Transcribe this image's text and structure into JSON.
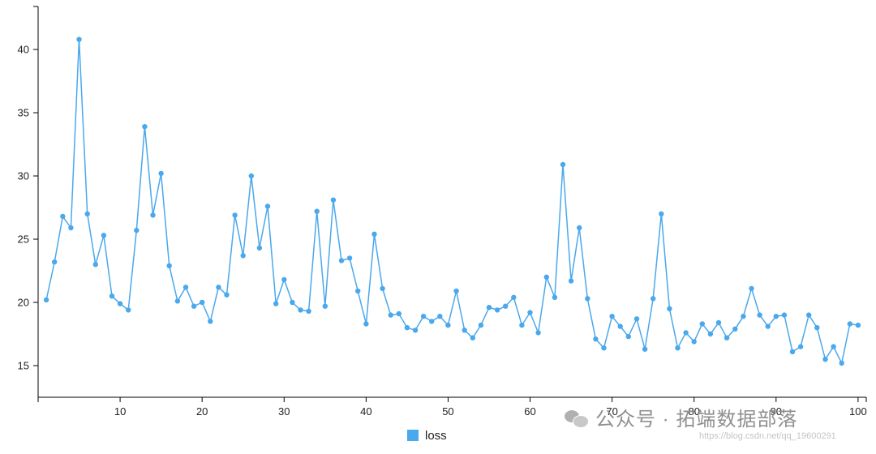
{
  "chart_data": {
    "type": "line",
    "x": [
      1,
      2,
      3,
      4,
      5,
      6,
      7,
      8,
      9,
      10,
      11,
      12,
      13,
      14,
      15,
      16,
      17,
      18,
      19,
      20,
      21,
      22,
      23,
      24,
      25,
      26,
      27,
      28,
      29,
      30,
      31,
      32,
      33,
      34,
      35,
      36,
      37,
      38,
      39,
      40,
      41,
      42,
      43,
      44,
      45,
      46,
      47,
      48,
      49,
      50,
      51,
      52,
      53,
      54,
      55,
      56,
      57,
      58,
      59,
      60,
      61,
      62,
      63,
      64,
      65,
      66,
      67,
      68,
      69,
      70,
      71,
      72,
      73,
      74,
      75,
      76,
      77,
      78,
      79,
      80,
      81,
      82,
      83,
      84,
      85,
      86,
      87,
      88,
      89,
      90,
      91,
      92,
      93,
      94,
      95,
      96,
      97,
      98,
      99,
      100
    ],
    "series": [
      {
        "name": "loss",
        "values": [
          20.2,
          23.2,
          26.8,
          25.9,
          40.8,
          27.0,
          23.0,
          25.3,
          20.5,
          19.9,
          19.4,
          25.7,
          33.9,
          26.9,
          30.2,
          22.9,
          20.1,
          21.2,
          19.7,
          20.0,
          18.5,
          21.2,
          20.6,
          26.9,
          23.7,
          30.0,
          24.3,
          27.6,
          19.9,
          21.8,
          20.0,
          19.4,
          19.3,
          27.2,
          19.7,
          28.1,
          23.3,
          23.5,
          20.9,
          18.3,
          25.4,
          21.1,
          19.0,
          19.1,
          18.0,
          17.8,
          18.9,
          18.5,
          18.9,
          18.2,
          20.9,
          17.8,
          17.2,
          18.2,
          19.6,
          19.4,
          19.7,
          20.4,
          18.2,
          19.2,
          17.6,
          22.0,
          20.4,
          30.9,
          21.7,
          25.9,
          20.3,
          17.1,
          16.4,
          18.9,
          18.1,
          17.3,
          18.7,
          16.3,
          20.3,
          27.0,
          19.5,
          16.4,
          17.6,
          16.9,
          18.3,
          17.5,
          18.4,
          17.2,
          17.9,
          18.9,
          21.1,
          19.0,
          18.1,
          18.9,
          19.0,
          16.1,
          16.5,
          19.0,
          18.0,
          15.5,
          16.5,
          15.2,
          18.3,
          18.2
        ]
      }
    ],
    "xticks": [
      "10",
      "20",
      "30",
      "40",
      "50",
      "60",
      "70",
      "80",
      "90",
      "100"
    ],
    "yticks": [
      "15",
      "20",
      "25",
      "30",
      "35",
      "40"
    ],
    "xlim": [
      0,
      101
    ],
    "ylim": [
      12.5,
      43.4
    ],
    "xlabel": "",
    "ylabel": "",
    "title": "",
    "grid": false,
    "legend_position": "bottom-center",
    "colors": {
      "line": "#4aa8ec",
      "axis": "#000000"
    }
  },
  "legend": {
    "label": "loss"
  },
  "watermark": {
    "text": "公众号 · 拓端数据部落",
    "icon": "wechat-icon",
    "url": "https://blog.csdn.net/qq_19600291"
  }
}
